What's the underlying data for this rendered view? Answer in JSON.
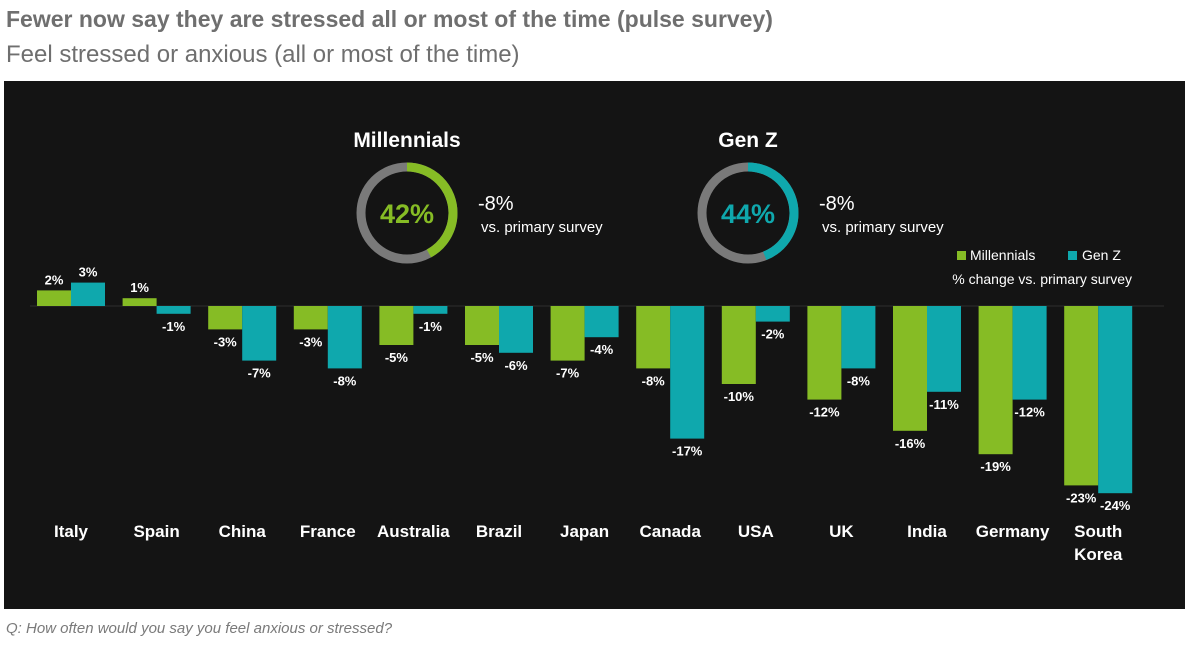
{
  "title": "Fewer now say they are stressed all or most of the time (pulse survey)",
  "subtitle": "Feel stressed or anxious (all or most of the time)",
  "footnote": "Q: How often would you say you feel anxious or stressed?",
  "colors": {
    "millennials": "#86bc25",
    "genz": "#0fa8ad",
    "ring_track": "#7a7a7a",
    "background": "#141414"
  },
  "donuts": [
    {
      "label": "Millennials",
      "value": 42,
      "value_text": "42%",
      "change_text": "-8%",
      "note": "vs. primary survey",
      "color": "#86bc25"
    },
    {
      "label": "Gen Z",
      "value": 44,
      "value_text": "44%",
      "change_text": "-8%",
      "note": "vs. primary survey",
      "color": "#0fa8ad"
    }
  ],
  "chart_data": {
    "type": "bar",
    "categories": [
      "Italy",
      "Spain",
      "China",
      "France",
      "Australia",
      "Brazil",
      "Japan",
      "Canada",
      "USA",
      "UK",
      "India",
      "Germany",
      "South Korea"
    ],
    "series": [
      {
        "name": "Millennials",
        "color": "#86bc25",
        "values": [
          2,
          1,
          -3,
          -3,
          -5,
          -5,
          -7,
          -8,
          -10,
          -12,
          -16,
          -19,
          -23
        ]
      },
      {
        "name": "Gen Z",
        "color": "#0fa8ad",
        "values": [
          3,
          -1,
          -7,
          -8,
          -1,
          -6,
          -4,
          -17,
          -2,
          -8,
          -11,
          -12,
          -24
        ]
      }
    ],
    "legend_note": "% change vs. primary survey",
    "legend_position": "top-right",
    "value_format": "{v}%",
    "grid": false
  }
}
